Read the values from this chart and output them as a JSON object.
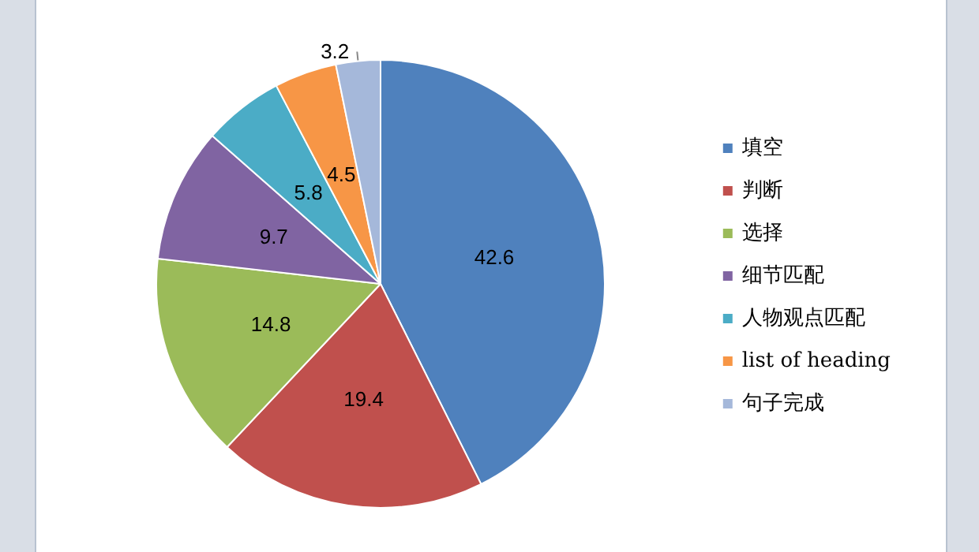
{
  "chart_data": {
    "type": "pie",
    "categories": [
      "填空",
      "判断",
      "选择",
      "细节匹配",
      "人物观点匹配",
      "list of heading",
      "句子完成"
    ],
    "values": [
      42.6,
      19.4,
      14.8,
      9.7,
      5.8,
      4.5,
      3.2
    ],
    "colors": [
      "#4f81bd",
      "#c0504d",
      "#9bbb59",
      "#8064a2",
      "#4bacc6",
      "#f79646",
      "#a5b8da"
    ],
    "data_labels": true,
    "legend": "right"
  }
}
